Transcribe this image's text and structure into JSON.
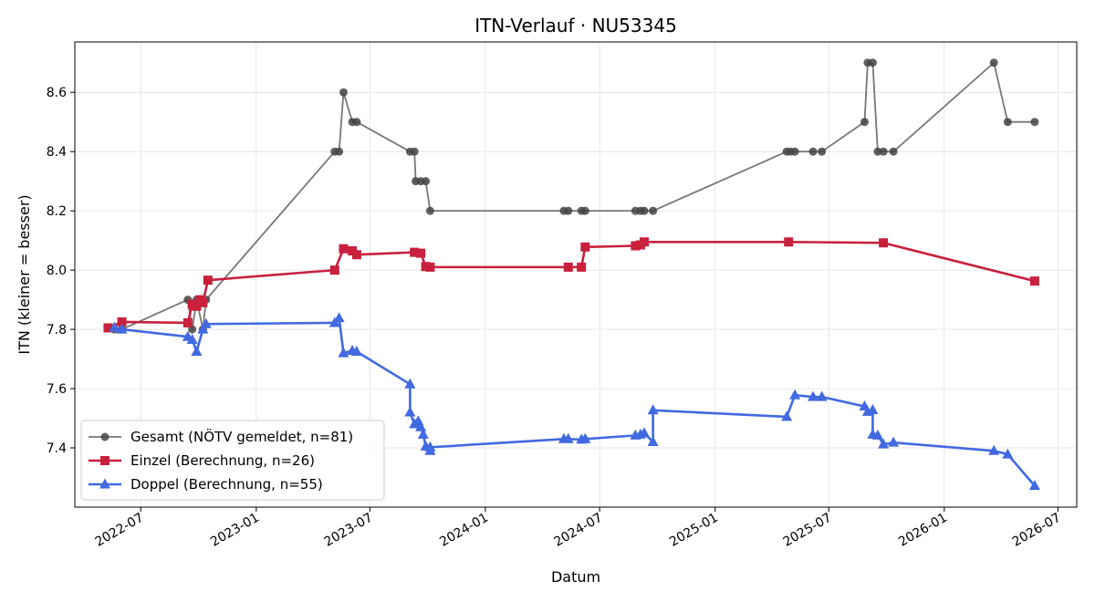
{
  "chart_data": {
    "type": "line",
    "title": "ITN-Verlauf · NU53345",
    "xlabel": "Datum",
    "ylabel": "ITN  (kleiner = besser)",
    "xlim": [
      "2022-03-18",
      "2026-07-31"
    ],
    "ylim": [
      7.2,
      8.77
    ],
    "x_ticks": [
      "2022-07",
      "2023-01",
      "2023-07",
      "2024-01",
      "2024-07",
      "2025-01",
      "2025-07",
      "2026-01",
      "2026-07"
    ],
    "y_ticks": [
      7.4,
      7.6,
      7.8,
      8.0,
      8.2,
      8.4,
      8.6
    ],
    "grid": true,
    "legend_position": "lower-left",
    "series": [
      {
        "name": "Gesamt (NÖTV gemeldet, n=81)",
        "color": "#555555",
        "marker": "circle",
        "points": [
          [
            "2022-05-20",
            7.8
          ],
          [
            "2022-06-01",
            7.8
          ],
          [
            "2022-09-14",
            7.9
          ],
          [
            "2022-09-21",
            7.8
          ],
          [
            "2022-09-28",
            7.9
          ],
          [
            "2022-10-08",
            7.8
          ],
          [
            "2022-10-13",
            7.9
          ],
          [
            "2023-05-06",
            8.4
          ],
          [
            "2023-05-13",
            8.4
          ],
          [
            "2023-05-20",
            8.6
          ],
          [
            "2023-06-03",
            8.5
          ],
          [
            "2023-06-10",
            8.5
          ],
          [
            "2023-09-03",
            8.4
          ],
          [
            "2023-09-10",
            8.4
          ],
          [
            "2023-09-12",
            8.3
          ],
          [
            "2023-09-20",
            8.3
          ],
          [
            "2023-09-28",
            8.3
          ],
          [
            "2023-10-05",
            8.2
          ],
          [
            "2024-05-05",
            8.2
          ],
          [
            "2024-05-12",
            8.2
          ],
          [
            "2024-06-02",
            8.2
          ],
          [
            "2024-06-08",
            8.2
          ],
          [
            "2024-08-27",
            8.2
          ],
          [
            "2024-09-04",
            8.2
          ],
          [
            "2024-09-10",
            8.2
          ],
          [
            "2024-09-24",
            8.2
          ],
          [
            "2025-04-25",
            8.4
          ],
          [
            "2025-05-01",
            8.4
          ],
          [
            "2025-05-08",
            8.4
          ],
          [
            "2025-06-06",
            8.4
          ],
          [
            "2025-06-20",
            8.4
          ],
          [
            "2025-08-27",
            8.5
          ],
          [
            "2025-09-01",
            8.7
          ],
          [
            "2025-09-09",
            8.7
          ],
          [
            "2025-09-17",
            8.4
          ],
          [
            "2025-09-26",
            8.4
          ],
          [
            "2025-10-12",
            8.4
          ],
          [
            "2026-03-21",
            8.7
          ],
          [
            "2026-04-12",
            8.5
          ],
          [
            "2026-05-25",
            8.5
          ]
        ]
      },
      {
        "name": "Einzel (Berechnung, n=26)",
        "color": "#c8203d",
        "marker": "square",
        "points": [
          [
            "2022-05-10",
            7.805
          ],
          [
            "2022-06-01",
            7.825
          ],
          [
            "2022-09-14",
            7.822
          ],
          [
            "2022-09-21",
            7.885
          ],
          [
            "2022-09-28",
            7.878
          ],
          [
            "2022-10-03",
            7.9
          ],
          [
            "2022-10-08",
            7.89
          ],
          [
            "2022-10-16",
            7.966
          ],
          [
            "2023-05-06",
            8.0
          ],
          [
            "2023-05-20",
            8.072
          ],
          [
            "2023-06-03",
            8.065
          ],
          [
            "2023-06-10",
            8.052
          ],
          [
            "2023-09-10",
            8.06
          ],
          [
            "2023-09-20",
            8.057
          ],
          [
            "2023-09-28",
            8.012
          ],
          [
            "2023-10-05",
            8.01
          ],
          [
            "2024-05-12",
            8.01
          ],
          [
            "2024-06-02",
            8.01
          ],
          [
            "2024-06-08",
            8.078
          ],
          [
            "2024-08-27",
            8.082
          ],
          [
            "2024-09-04",
            8.085
          ],
          [
            "2024-09-10",
            8.095
          ],
          [
            "2025-04-28",
            8.095
          ],
          [
            "2025-09-26",
            8.092
          ],
          [
            "2026-05-25",
            7.963
          ]
        ]
      },
      {
        "name": "Doppel (Berechnung, n=55)",
        "color": "#4169e1",
        "marker": "triangle",
        "points": [
          [
            "2022-05-20",
            7.806
          ],
          [
            "2022-06-01",
            7.8
          ],
          [
            "2022-09-14",
            7.775
          ],
          [
            "2022-09-21",
            7.765
          ],
          [
            "2022-09-28",
            7.725
          ],
          [
            "2022-10-08",
            7.8
          ],
          [
            "2022-10-13",
            7.818
          ],
          [
            "2023-05-06",
            7.822
          ],
          [
            "2023-05-13",
            7.838
          ],
          [
            "2023-05-20",
            7.72
          ],
          [
            "2023-06-03",
            7.728
          ],
          [
            "2023-06-10",
            7.725
          ],
          [
            "2023-09-03",
            7.615
          ],
          [
            "2023-09-03",
            7.52
          ],
          [
            "2023-09-10",
            7.48
          ],
          [
            "2023-09-16",
            7.49
          ],
          [
            "2023-09-20",
            7.47
          ],
          [
            "2023-09-24",
            7.445
          ],
          [
            "2023-09-28",
            7.405
          ],
          [
            "2023-10-05",
            7.39
          ],
          [
            "2023-10-05",
            7.402
          ],
          [
            "2024-05-05",
            7.43
          ],
          [
            "2024-05-12",
            7.43
          ],
          [
            "2024-06-02",
            7.428
          ],
          [
            "2024-06-08",
            7.43
          ],
          [
            "2024-08-27",
            7.442
          ],
          [
            "2024-09-04",
            7.445
          ],
          [
            "2024-09-10",
            7.45
          ],
          [
            "2024-09-24",
            7.42
          ],
          [
            "2024-09-24",
            7.527
          ],
          [
            "2025-04-25",
            7.505
          ],
          [
            "2025-05-08",
            7.578
          ],
          [
            "2025-06-06",
            7.572
          ],
          [
            "2025-06-20",
            7.572
          ],
          [
            "2025-08-27",
            7.54
          ],
          [
            "2025-09-01",
            7.522
          ],
          [
            "2025-09-09",
            7.528
          ],
          [
            "2025-09-09",
            7.445
          ],
          [
            "2025-09-17",
            7.442
          ],
          [
            "2025-09-26",
            7.412
          ],
          [
            "2025-10-12",
            7.418
          ],
          [
            "2026-03-21",
            7.39
          ],
          [
            "2026-04-12",
            7.378
          ],
          [
            "2026-05-25",
            7.272
          ]
        ]
      }
    ]
  }
}
